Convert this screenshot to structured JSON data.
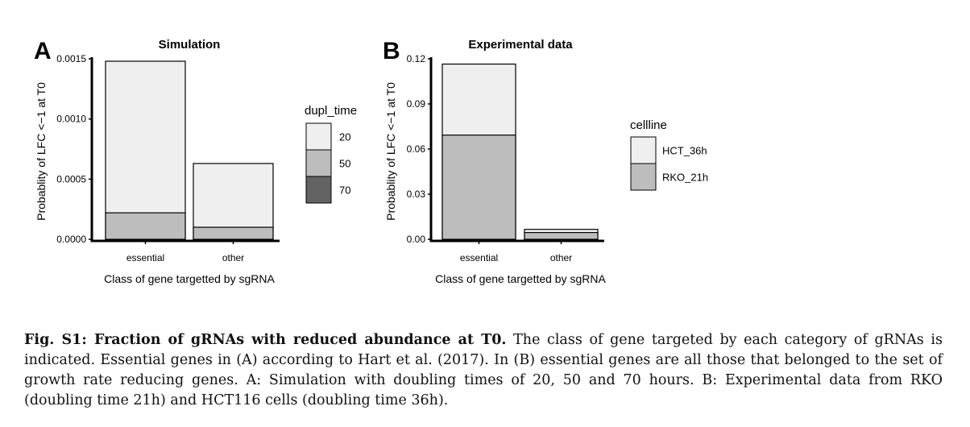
{
  "chart_data": [
    {
      "type": "bar",
      "panel": "A",
      "title": "Simulation",
      "xlabel": "Class of gene targetted by sgRNA",
      "ylabel": "Probablity of LFC <−1 at T0",
      "categories": [
        "essential",
        "other"
      ],
      "ylim": [
        0,
        0.0015
      ],
      "yticks": [
        0.0,
        0.0005,
        0.001,
        0.0015
      ],
      "ytick_labels": [
        "0.0000",
        "0.0005",
        "0.0010",
        "0.0015"
      ],
      "legend_title": "dupl_time",
      "legend_position": "right",
      "overlay": true,
      "series": [
        {
          "name": "20",
          "color": "#efefef",
          "values": [
            0.00148,
            0.00063
          ]
        },
        {
          "name": "50",
          "color": "#bdbdbd",
          "values": [
            0.00022,
            0.0001
          ]
        },
        {
          "name": "70",
          "color": "#636363",
          "values": [
            0,
            0
          ]
        }
      ]
    },
    {
      "type": "bar",
      "panel": "B",
      "title": "Experimental data",
      "xlabel": "Class of gene targetted by sgRNA",
      "ylabel": "Probablity of LFC <−1 at T0",
      "categories": [
        "essential",
        "other"
      ],
      "ylim": [
        0,
        0.12
      ],
      "yticks": [
        0.0,
        0.03,
        0.06,
        0.09,
        0.12
      ],
      "ytick_labels": [
        "0.00",
        "0.03",
        "0.06",
        "0.09",
        "0.12"
      ],
      "legend_title": "cellline",
      "legend_position": "right",
      "overlay": true,
      "series": [
        {
          "name": "HCT_36h",
          "color": "#efefef",
          "values": [
            0.1165,
            0.0066
          ]
        },
        {
          "name": "RKO_21h",
          "color": "#bdbdbd",
          "values": [
            0.0693,
            0.0045
          ]
        }
      ]
    }
  ],
  "caption": {
    "lead": "Fig. S1: Fraction of gRNAs with reduced abundance at T0.",
    "body": "The class of gene targeted by each category of gRNAs is indicated. Essential genes in (A) according to Hart et al. (2017). In (B) essential genes are all those that belonged to the set of growth rate reducing genes. A: Simulation with doubling times of 20, 50 and 70 hours. B: Experimental data from RKO (doubling time 21h) and HCT116 cells (doubling time 36h)."
  }
}
